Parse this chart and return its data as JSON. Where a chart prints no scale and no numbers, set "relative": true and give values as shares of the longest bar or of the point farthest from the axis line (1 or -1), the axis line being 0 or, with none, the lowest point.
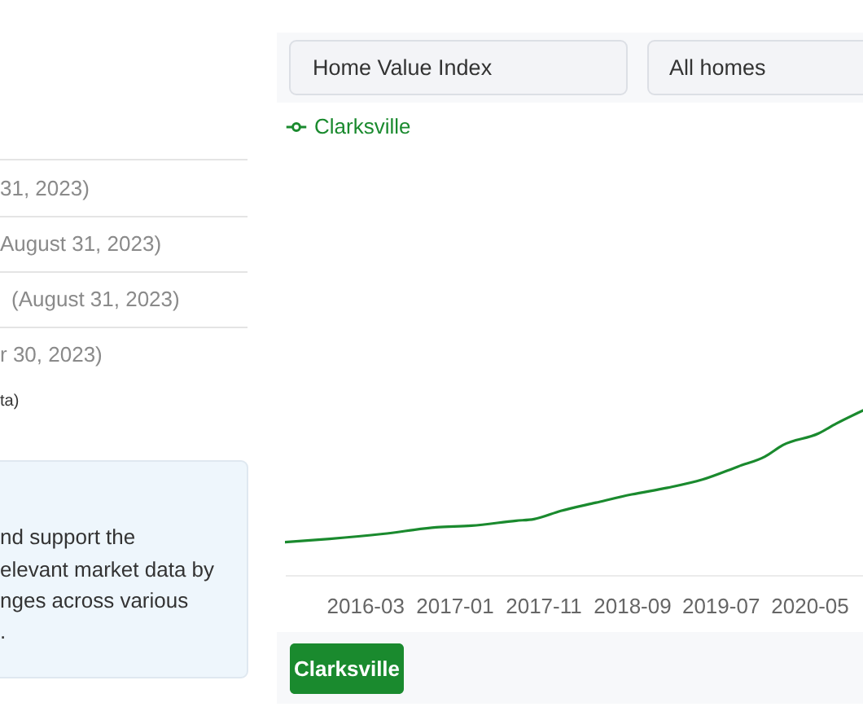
{
  "chart_data": {
    "type": "line",
    "relative": true,
    "x": [
      "2015-06",
      "2015-11",
      "2016-05",
      "2016-11",
      "2017-03",
      "2017-08",
      "2017-10",
      "2018-01",
      "2018-05",
      "2018-09",
      "2019-01",
      "2019-05",
      "2019-09",
      "2019-12",
      "2020-02",
      "2020-06",
      "2020-08",
      "2020-11"
    ],
    "series": [
      {
        "name": "Clarksville",
        "color": "#1a8a2e",
        "values": [
          0.2,
          0.22,
          0.25,
          0.29,
          0.3,
          0.33,
          0.34,
          0.39,
          0.44,
          0.49,
          0.53,
          0.58,
          0.66,
          0.72,
          0.79,
          0.86,
          0.92,
          1.0
        ]
      }
    ],
    "xlim": [
      "2015-06",
      "2020-11"
    ],
    "xticks": [
      "2016-03",
      "2017-01",
      "2017-11",
      "2018-09",
      "2019-07",
      "2020-05"
    ],
    "legend": "top left",
    "annotations": [
      "Home Value Index",
      "All homes",
      "Clarksville",
      "31, 2023)",
      "August 31, 2023)",
      "(August 31, 2023)",
      "r 30, 2023)",
      "ta)",
      "nd support the",
      "elevant market data by",
      "nges across various",
      "."
    ]
  }
}
